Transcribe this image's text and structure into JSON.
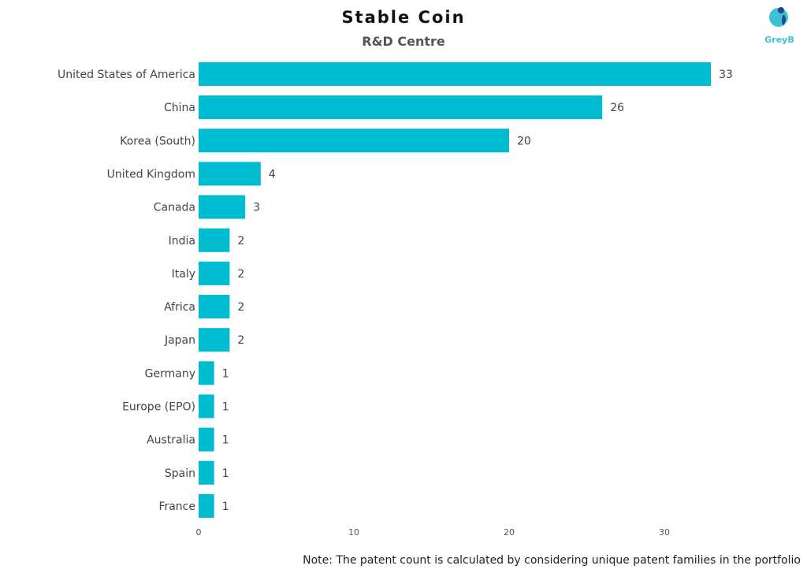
{
  "chart_data": {
    "type": "bar",
    "orientation": "horizontal",
    "title": "Stable Coin",
    "subtitle": "R&D Centre",
    "categories": [
      "United States of America",
      "China",
      "Korea (South)",
      "United Kingdom",
      "Canada",
      "India",
      "Italy",
      "Africa",
      "Japan",
      "Germany",
      "Europe (EPO)",
      "Australia",
      "Spain",
      "France"
    ],
    "values": [
      33,
      26,
      20,
      4,
      3,
      2,
      2,
      2,
      2,
      1,
      1,
      1,
      1,
      1
    ],
    "xlim": [
      0,
      33
    ],
    "xticks": [
      0,
      10,
      20,
      30
    ],
    "grid": false,
    "bar_color": "#00bcd0",
    "data_labels": true
  },
  "note": "Note: The patent count is calculated by considering unique patent families in the portfolio",
  "logo": {
    "text": "GreyB",
    "color": "#3cc3cf"
  }
}
